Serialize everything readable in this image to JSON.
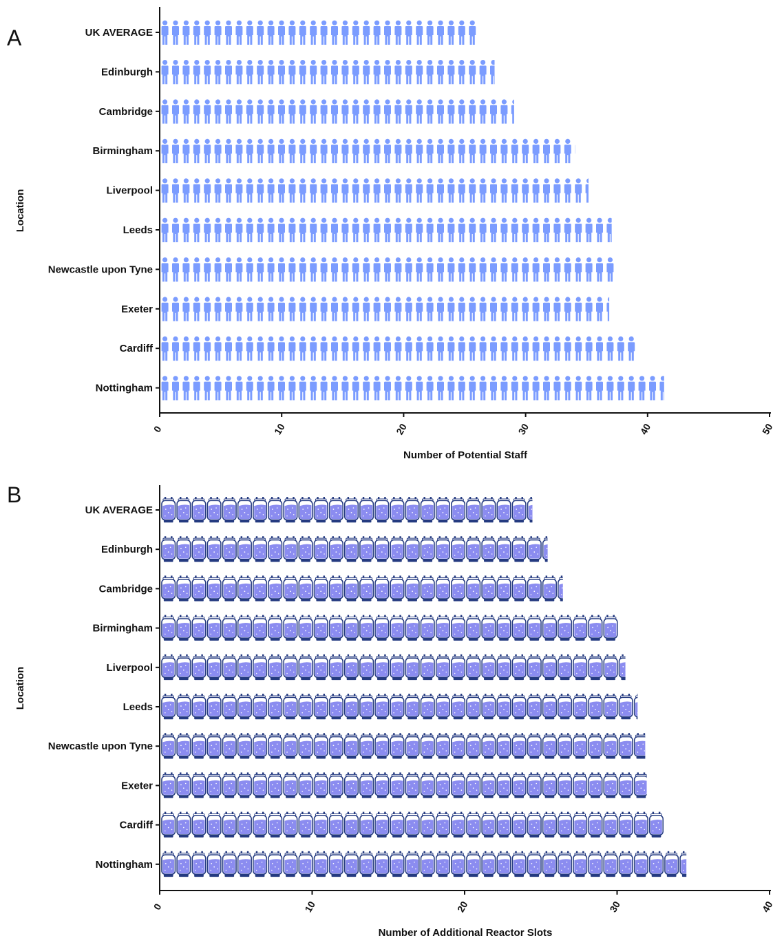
{
  "chart_data": [
    {
      "panel": "A",
      "type": "bar",
      "orientation": "horizontal",
      "marker": "person-icon",
      "color": "#7b9cff",
      "categories": [
        "UK AVERAGE",
        "Edinburgh",
        "Cambridge",
        "Birmingham",
        "Liverpool",
        "Leeds",
        "Newcastle upon Tyne",
        "Exeter",
        "Cardiff",
        "Nottingham"
      ],
      "values": [
        26.1,
        27.4,
        29.0,
        34.0,
        35.1,
        37.0,
        37.3,
        36.8,
        39.1,
        41.3
      ],
      "xlabel": "Number of Potential Staff",
      "ylabel": "Location",
      "xlim": [
        0,
        50
      ],
      "xticks": [
        "0",
        "10",
        "20",
        "30",
        "40",
        "50"
      ]
    },
    {
      "panel": "B",
      "type": "bar",
      "orientation": "horizontal",
      "marker": "reactor-icon",
      "color": "#8b8cf0",
      "outline": "#243a80",
      "categories": [
        "UK AVERAGE",
        "Edinburgh",
        "Cambridge",
        "Birmingham",
        "Liverpool",
        "Leeds",
        "Newcastle upon Tyne",
        "Exeter",
        "Cardiff",
        "Nottingham"
      ],
      "values": [
        24.4,
        25.4,
        26.4,
        30.0,
        30.5,
        31.3,
        31.8,
        31.9,
        33.0,
        34.5
      ],
      "xlabel": "Number of Additional Reactor Slots",
      "ylabel": "Location",
      "xlim": [
        0,
        40
      ],
      "xticks": [
        "0",
        "10",
        "20",
        "30",
        "40"
      ]
    }
  ]
}
